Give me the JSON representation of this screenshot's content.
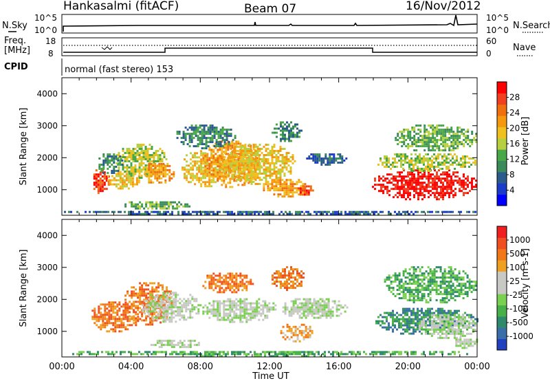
{
  "header": {
    "station": "Hankasalmi (fitACF)",
    "beam": "Beam 07",
    "date": "16/Nov/2012"
  },
  "top_panels": {
    "nsky_label": "N.Sky",
    "nsky_ticks": [
      "10^5",
      "10^0"
    ],
    "nsearch_label": "N.Search",
    "nsearch_ticks": [
      "10^5",
      "10^0"
    ],
    "freq_label": "Freq.",
    "freq_unit": "[MHz]",
    "freq_ticks": [
      "18",
      "8"
    ],
    "nave_label": "Nave",
    "nave_ticks": [
      "60",
      "0"
    ],
    "cpid_label": "CPID",
    "cpid_text": "normal (fast stereo) 153"
  },
  "x_axis": {
    "label": "Time UT",
    "ticks": [
      "00:00",
      "04:00",
      "08:00",
      "12:00",
      "16:00",
      "20:00",
      "00:00"
    ]
  },
  "power_colorbar": {
    "label": "Power [dB]",
    "ticks": [
      "4",
      "8",
      "12",
      "16",
      "20",
      "24",
      "28"
    ],
    "colors": [
      "#0000ff",
      "#1a3cc8",
      "#2b5a8c",
      "#3a8a5a",
      "#48a848",
      "#b8d040",
      "#f0c020",
      "#f59a10",
      "#f07010",
      "#f04020",
      "#ff0000"
    ]
  },
  "velocity_colorbar": {
    "label": "Velocity [m s-1]",
    "ticks": [
      "1000",
      "500",
      "100",
      "25",
      "-25",
      "-100",
      "-500",
      "-1000"
    ],
    "colors": [
      "#2040c0",
      "#3a6ea8",
      "#2e8a6a",
      "#48b048",
      "#7ad050",
      "#c8c8c4",
      "#c8c8c4",
      "#f0a020",
      "#f07818",
      "#f05020",
      "#f02020"
    ]
  },
  "chart_data": [
    {
      "type": "heatmap",
      "title": "Power",
      "xlabel": "",
      "ylabel": "Slant Range [km]",
      "xlim_hours": [
        0,
        24
      ],
      "ylim": [
        200,
        4500
      ],
      "yticks": [
        "1000",
        "2000",
        "3000",
        "4000"
      ],
      "blobs": [
        {
          "t": [
            1.7,
            2.7
          ],
          "r": [
            900,
            1700
          ],
          "level": 9
        },
        {
          "t": [
            2.5,
            4.5
          ],
          "r": [
            1050,
            1650
          ],
          "level": 6
        },
        {
          "t": [
            3.0,
            6.0
          ],
          "r": [
            1400,
            2500
          ],
          "level": 5
        },
        {
          "t": [
            4.5,
            6.5
          ],
          "r": [
            1200,
            1900
          ],
          "level": 7
        },
        {
          "t": [
            6.8,
            9.5
          ],
          "r": [
            1100,
            2300
          ],
          "level": 6
        },
        {
          "t": [
            8.0,
            11.5
          ],
          "r": [
            1100,
            2600
          ],
          "level": 7
        },
        {
          "t": [
            9.0,
            13.5
          ],
          "r": [
            1200,
            2500
          ],
          "level": 6
        },
        {
          "t": [
            11.5,
            14.2
          ],
          "r": [
            800,
            1400
          ],
          "level": 7
        },
        {
          "t": [
            13.5,
            14.5
          ],
          "r": [
            850,
            1200
          ],
          "level": 9
        },
        {
          "t": [
            6.5,
            10.0
          ],
          "r": [
            2300,
            3100
          ],
          "level": 3
        },
        {
          "t": [
            12.0,
            13.8
          ],
          "r": [
            2500,
            3200
          ],
          "level": 3
        },
        {
          "t": [
            14.0,
            16.5
          ],
          "r": [
            1800,
            2200
          ],
          "level": 2
        },
        {
          "t": [
            3.5,
            7.5
          ],
          "r": [
            400,
            700
          ],
          "level": 4
        },
        {
          "t": [
            0.0,
            24.0
          ],
          "r": [
            250,
            400
          ],
          "level": 2
        },
        {
          "t": [
            17.8,
            24.0
          ],
          "r": [
            700,
            1700
          ],
          "level": 10
        },
        {
          "t": [
            18.0,
            24.0
          ],
          "r": [
            1600,
            2200
          ],
          "level": 5
        },
        {
          "t": [
            19.0,
            24.0
          ],
          "r": [
            2200,
            3100
          ],
          "level": 4
        },
        {
          "t": [
            2.0,
            3.5
          ],
          "r": [
            1500,
            2200
          ],
          "level": 3
        }
      ]
    },
    {
      "type": "heatmap",
      "title": "Velocity",
      "xlabel": "Time UT",
      "ylabel": "Slant Range [km]",
      "xlim_hours": [
        0,
        24
      ],
      "ylim": [
        200,
        4500
      ],
      "yticks": [
        "1000",
        "2000",
        "3000",
        "4000"
      ],
      "blobs": [
        {
          "t": [
            1.6,
            4.5
          ],
          "r": [
            1000,
            2000
          ],
          "level": 8
        },
        {
          "t": [
            3.5,
            6.5
          ],
          "r": [
            1200,
            2600
          ],
          "level": 8
        },
        {
          "t": [
            4.5,
            8.0
          ],
          "r": [
            1300,
            2300
          ],
          "level": 5
        },
        {
          "t": [
            8.0,
            12.5
          ],
          "r": [
            1300,
            2100
          ],
          "level": 5
        },
        {
          "t": [
            12.5,
            16.5
          ],
          "r": [
            1400,
            2100
          ],
          "level": 5
        },
        {
          "t": [
            8.0,
            11.0
          ],
          "r": [
            2200,
            2900
          ],
          "level": 8
        },
        {
          "t": [
            12.0,
            14.0
          ],
          "r": [
            2300,
            3100
          ],
          "level": 8
        },
        {
          "t": [
            12.5,
            14.5
          ],
          "r": [
            700,
            1300
          ],
          "level": 7
        },
        {
          "t": [
            5.0,
            8.0
          ],
          "r": [
            500,
            800
          ],
          "level": 5
        },
        {
          "t": [
            0.0,
            24.0
          ],
          "r": [
            250,
            450
          ],
          "level": 3
        },
        {
          "t": [
            18.0,
            24.0
          ],
          "r": [
            900,
            1800
          ],
          "level": 2
        },
        {
          "t": [
            20.5,
            24.0
          ],
          "r": [
            800,
            1600
          ],
          "level": 5
        },
        {
          "t": [
            18.5,
            24.0
          ],
          "r": [
            1900,
            3100
          ],
          "level": 3
        },
        {
          "t": [
            22.5,
            24.0
          ],
          "r": [
            500,
            900
          ],
          "level": 5
        }
      ]
    }
  ]
}
